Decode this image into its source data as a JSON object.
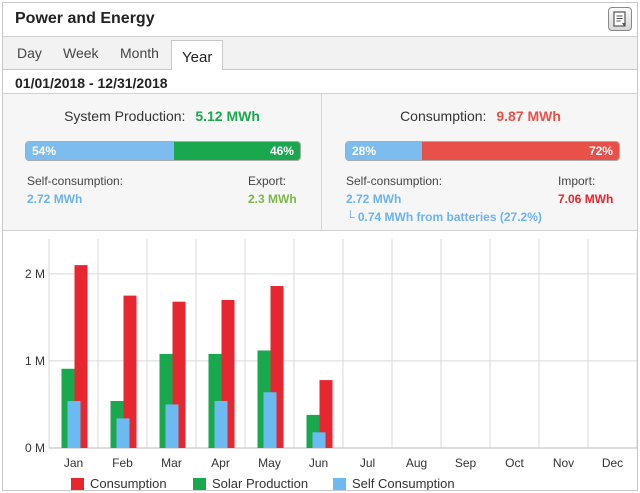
{
  "widget": {
    "title": "Power and Energy",
    "export_icon": "export-document-icon"
  },
  "tabs": [
    {
      "label": "Day",
      "active": false
    },
    {
      "label": "Week",
      "active": false
    },
    {
      "label": "Month",
      "active": false
    },
    {
      "label": "Year",
      "active": true
    }
  ],
  "date_range": "01/01/2018 - 12/31/2018",
  "production": {
    "label": "System Production:",
    "value": "5.12 MWh",
    "self_pct": "54%",
    "export_pct": "46%",
    "self_label": "Self-consumption:",
    "self_value": "2.72 MWh",
    "export_label": "Export:",
    "export_value": "2.3 MWh"
  },
  "consumption": {
    "label": "Consumption:",
    "value": "9.87 MWh",
    "self_pct": "28%",
    "import_pct": "72%",
    "self_label": "Self-consumption:",
    "self_value": "2.72 MWh",
    "batteries_note": "└ 0.74 MWh from batteries (27.2%)",
    "import_label": "Import:",
    "import_value": "7.06 MWh"
  },
  "colors": {
    "production": "#1aa84f",
    "consumption": "#e8504a",
    "self": "#7dbcef",
    "bar_consumption": "#e8262f",
    "bar_solar": "#1aa84f",
    "bar_self": "#6cbaf2"
  },
  "chart_data": {
    "type": "bar",
    "categories": [
      "Jan",
      "Feb",
      "Mar",
      "Apr",
      "May",
      "Jun",
      "Jul",
      "Aug",
      "Sep",
      "Oct",
      "Nov",
      "Dec"
    ],
    "series": [
      {
        "name": "Consumption",
        "values": [
          2.1,
          1.75,
          1.68,
          1.7,
          1.86,
          0.78,
          0,
          0,
          0,
          0,
          0,
          0
        ]
      },
      {
        "name": "Solar Production",
        "values": [
          0.91,
          0.54,
          1.08,
          1.08,
          1.12,
          0.38,
          0,
          0,
          0,
          0,
          0,
          0
        ]
      },
      {
        "name": "Self Consumption",
        "values": [
          0.54,
          0.34,
          0.5,
          0.54,
          0.64,
          0.18,
          0,
          0,
          0,
          0,
          0,
          0
        ]
      }
    ],
    "ylim": [
      0,
      2.4
    ],
    "yticks": [
      0,
      1,
      2
    ],
    "ytick_labels": [
      "0 M",
      "1 M",
      "2 M"
    ],
    "grid": true,
    "legend_position": "bottom"
  }
}
